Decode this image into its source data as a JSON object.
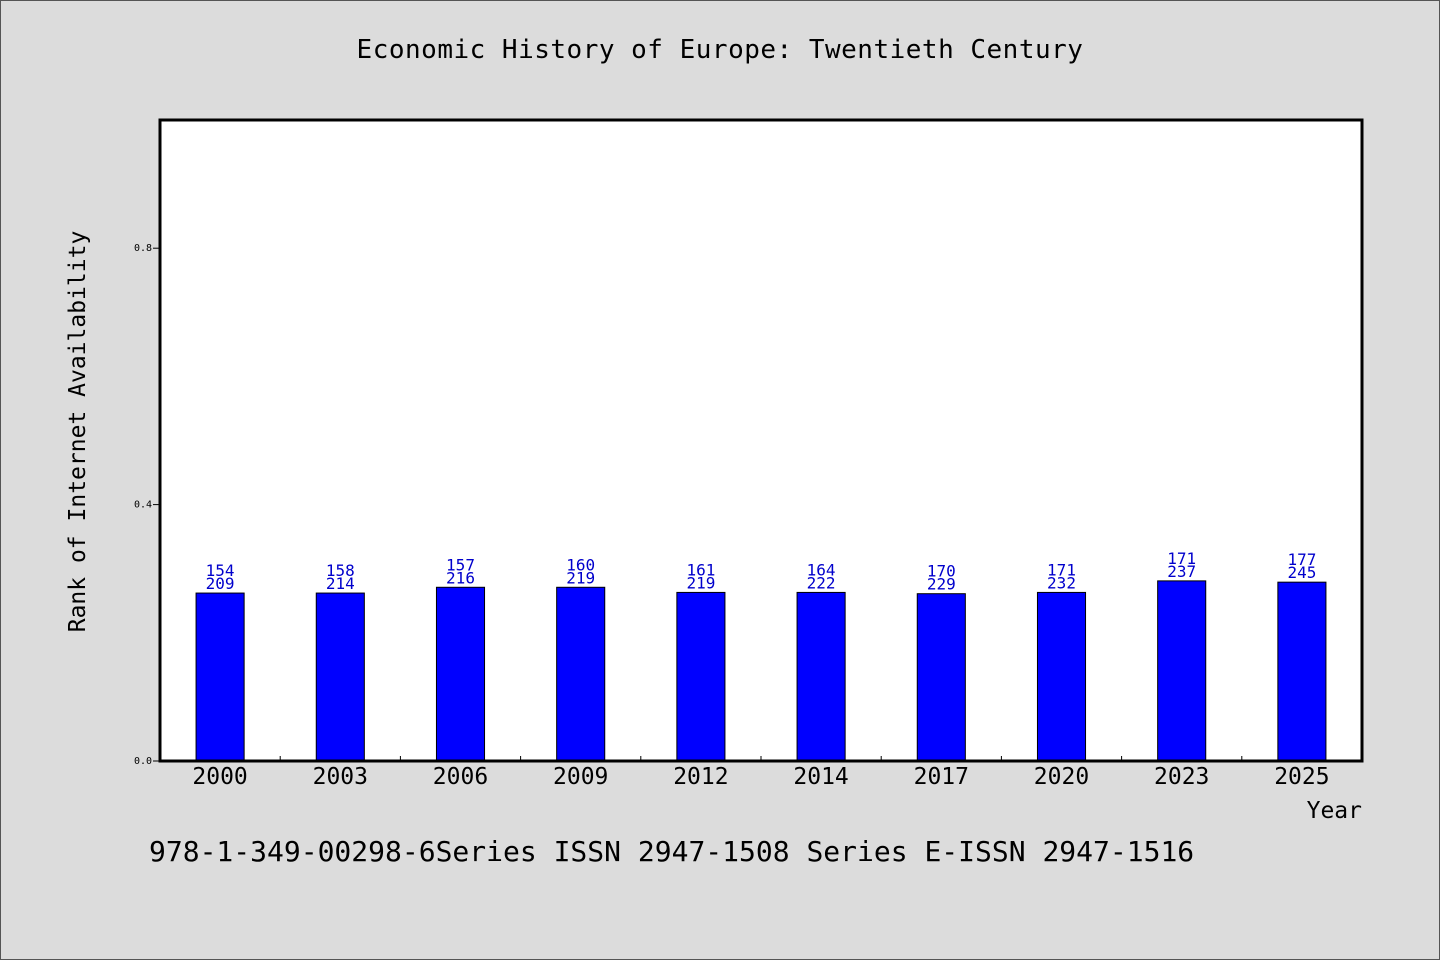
{
  "chart_data": {
    "type": "bar",
    "title": "Economic History of Europe: Twentieth Century",
    "xlabel": "Year",
    "ylabel": "Rank of Internet Availability",
    "ylim": [
      0.0,
      1.0
    ],
    "yticks": [
      0.0,
      0.4,
      0.8
    ],
    "ytick_labels": [
      "0.0",
      "0.4",
      "0.8"
    ],
    "categories": [
      "2000",
      "2003",
      "2006",
      "2009",
      "2012",
      "2014",
      "2017",
      "2020",
      "2023",
      "2025"
    ],
    "values": [
      0.262,
      0.262,
      0.271,
      0.271,
      0.263,
      0.263,
      0.261,
      0.263,
      0.281,
      0.279
    ],
    "data_labels_top": [
      "154",
      "158",
      "157",
      "160",
      "161",
      "164",
      "170",
      "171",
      "171",
      "177"
    ],
    "data_labels_bottom": [
      "209",
      "214",
      "216",
      "219",
      "219",
      "222",
      "229",
      "232",
      "237",
      "245"
    ],
    "grid": false,
    "bar_color": "#0000ff",
    "label_color": "#0000cc"
  },
  "footer": "978-1-349-00298-6Series ISSN 2947-1508 Series E-ISSN 2947-1516"
}
